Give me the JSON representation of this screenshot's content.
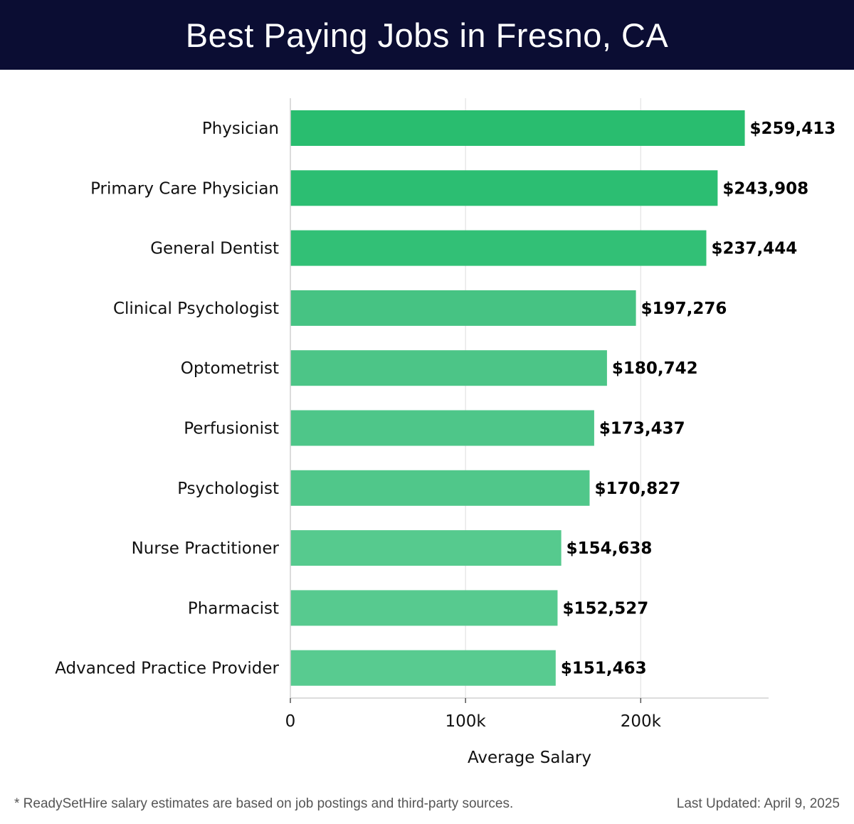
{
  "header": {
    "title": "Best Paying Jobs in Fresno, CA"
  },
  "chart_data": {
    "type": "bar",
    "orientation": "horizontal",
    "categories": [
      "Physician",
      "Primary Care Physician",
      "General Dentist",
      "Clinical Psychologist",
      "Optometrist",
      "Perfusionist",
      "Psychologist",
      "Nurse Practitioner",
      "Pharmacist",
      "Advanced Practice Provider"
    ],
    "values": [
      259413,
      243908,
      237444,
      197276,
      180742,
      173437,
      170827,
      154638,
      152527,
      151463
    ],
    "value_labels": [
      "$259,413",
      "$243,908",
      "$237,444",
      "$197,276",
      "$180,742",
      "$173,437",
      "$170,827",
      "$154,638",
      "$152,527",
      "$151,463"
    ],
    "xlabel": "Average Salary",
    "ylabel": "",
    "xlim": [
      0,
      273000
    ],
    "xticks": [
      0,
      100000,
      200000
    ],
    "xtick_labels": [
      "0",
      "100k",
      "200k"
    ],
    "grid": true,
    "colors": [
      "#29bd6f",
      "#2cbe72",
      "#32c076",
      "#46c383",
      "#4cc587",
      "#4ec689",
      "#50c78a",
      "#56ca8e",
      "#57ca8f",
      "#58cb90"
    ]
  },
  "footer": {
    "note": "* ReadySetHire salary estimates are based on job postings and third-party sources.",
    "updated": "Last Updated: April 9, 2025"
  }
}
